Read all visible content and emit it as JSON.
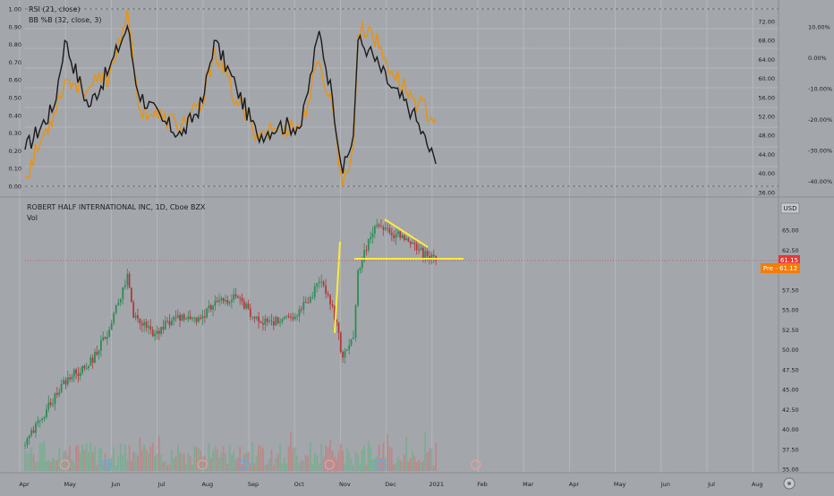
{
  "colors": {
    "background": "#a3a6ab",
    "grid": "#b4b7bb",
    "rsi_line": "#1a1a1a",
    "bb_line": "#e8940e",
    "up_candle": "#2e8b57",
    "down_candle": "#b03a3a",
    "annotation": "#ffeb3b",
    "price_badge": "#e53935",
    "pre_badge": "#f57c00"
  },
  "indicator_panel": {
    "legend": [
      "RSI (21, close)",
      "BB %B (32, close, 3)"
    ],
    "left_ticks": [
      "1.00",
      "0.90",
      "0.80",
      "0.70",
      "0.60",
      "0.50",
      "0.40",
      "0.30",
      "0.20",
      "0.10",
      "0.00"
    ],
    "mid_ticks": [
      "72.00",
      "68.00",
      "64.00",
      "60.00",
      "56.00",
      "52.00",
      "48.00",
      "44.00",
      "40.00",
      "36.00"
    ],
    "right_ticks": [
      "10.00%",
      "0.00%",
      "-10.00%",
      "-20.00%",
      "-30.00%",
      "-40.00%"
    ]
  },
  "price_panel": {
    "title": "ROBERT HALF INTERNATIONAL INC, 1D, Cboe BZX",
    "volume_label": "Vol",
    "currency": "USD",
    "ticks": [
      "65.00",
      "62.50",
      "57.50",
      "55.00",
      "52.50",
      "50.00",
      "47.50",
      "45.00",
      "42.50",
      "40.00",
      "37.50",
      "35.00"
    ],
    "last_price": "61.15",
    "pre_market": "Pre - 61.12"
  },
  "time_axis": [
    "Apr",
    "May",
    "Jun",
    "Jul",
    "Aug",
    "Sep",
    "Oct",
    "Nov",
    "Dec",
    "2021",
    "Feb",
    "Mar",
    "Apr",
    "May",
    "Jun",
    "Jul",
    "Aug"
  ],
  "chart_data": {
    "type": "candlestick",
    "title": "ROBERT HALF INTERNATIONAL INC, 1D, Cboe BZX",
    "price_range": [
      34,
      67
    ],
    "price_anchors": [
      {
        "x": "Apr 1",
        "y": 38.0
      },
      {
        "x": "Apr 15",
        "y": 42.5
      },
      {
        "x": "Apr 29",
        "y": 46.5
      },
      {
        "x": "May 13",
        "y": 48.0
      },
      {
        "x": "May 27",
        "y": 52.5
      },
      {
        "x": "Jun 8",
        "y": 59.5
      },
      {
        "x": "Jun 12",
        "y": 54.0
      },
      {
        "x": "Jun 26",
        "y": 52.0
      },
      {
        "x": "Jul 10",
        "y": 54.0
      },
      {
        "x": "Jul 24",
        "y": 53.5
      },
      {
        "x": "Aug 7",
        "y": 56.0
      },
      {
        "x": "Aug 21",
        "y": 56.5
      },
      {
        "x": "Sep 4",
        "y": 53.5
      },
      {
        "x": "Sep 18",
        "y": 53.5
      },
      {
        "x": "Oct 2",
        "y": 55.0
      },
      {
        "x": "Oct 14",
        "y": 58.5
      },
      {
        "x": "Oct 23",
        "y": 55.5
      },
      {
        "x": "Oct 30",
        "y": 49.0
      },
      {
        "x": "Nov 6",
        "y": 51.5
      },
      {
        "x": "Nov 9",
        "y": 60.0
      },
      {
        "x": "Nov 20",
        "y": 65.5
      },
      {
        "x": "Dec 4",
        "y": 64.5
      },
      {
        "x": "Dec 18",
        "y": 62.5
      },
      {
        "x": "Dec 31",
        "y": 61.15
      }
    ],
    "rsi_anchors": [
      {
        "x": "Apr 1",
        "y": 45
      },
      {
        "x": "Apr 20",
        "y": 54
      },
      {
        "x": "Apr 27",
        "y": 68
      },
      {
        "x": "May 13",
        "y": 54
      },
      {
        "x": "May 27",
        "y": 62
      },
      {
        "x": "Jun 8",
        "y": 71
      },
      {
        "x": "Jun 15",
        "y": 57
      },
      {
        "x": "Jul 1",
        "y": 51
      },
      {
        "x": "Jul 14",
        "y": 48
      },
      {
        "x": "Jul 28",
        "y": 55
      },
      {
        "x": "Aug 5",
        "y": 68
      },
      {
        "x": "Aug 20",
        "y": 58
      },
      {
        "x": "Sep 3",
        "y": 48
      },
      {
        "x": "Sep 17",
        "y": 50
      },
      {
        "x": "Oct 2",
        "y": 50
      },
      {
        "x": "Oct 14",
        "y": 70
      },
      {
        "x": "Oct 23",
        "y": 56
      },
      {
        "x": "Oct 30",
        "y": 40
      },
      {
        "x": "Nov 6",
        "y": 48
      },
      {
        "x": "Nov 9",
        "y": 68
      },
      {
        "x": "Nov 16",
        "y": 66
      },
      {
        "x": "Dec 1",
        "y": 58
      },
      {
        "x": "Dec 15",
        "y": 53
      },
      {
        "x": "Dec 31",
        "y": 42
      }
    ],
    "bb_percent_anchors": [
      {
        "x": "Apr 1",
        "y": 0.05
      },
      {
        "x": "Apr 20",
        "y": 0.42
      },
      {
        "x": "Apr 27",
        "y": 0.6
      },
      {
        "x": "May 13",
        "y": 0.55
      },
      {
        "x": "May 27",
        "y": 0.62
      },
      {
        "x": "Jun 8",
        "y": 1.0
      },
      {
        "x": "Jun 15",
        "y": 0.45
      },
      {
        "x": "Jul 1",
        "y": 0.38
      },
      {
        "x": "Jul 14",
        "y": 0.35
      },
      {
        "x": "Jul 28",
        "y": 0.45
      },
      {
        "x": "Aug 5",
        "y": 0.78
      },
      {
        "x": "Aug 20",
        "y": 0.48
      },
      {
        "x": "Sep 3",
        "y": 0.3
      },
      {
        "x": "Sep 17",
        "y": 0.33
      },
      {
        "x": "Oct 2",
        "y": 0.35
      },
      {
        "x": "Oct 14",
        "y": 0.7
      },
      {
        "x": "Oct 23",
        "y": 0.45
      },
      {
        "x": "Oct 30",
        "y": 0.0
      },
      {
        "x": "Nov 6",
        "y": 0.22
      },
      {
        "x": "Nov 9",
        "y": 0.85
      },
      {
        "x": "Nov 16",
        "y": 0.9
      },
      {
        "x": "Dec 1",
        "y": 0.65
      },
      {
        "x": "Dec 15",
        "y": 0.5
      },
      {
        "x": "Dec 31",
        "y": 0.38
      }
    ]
  }
}
